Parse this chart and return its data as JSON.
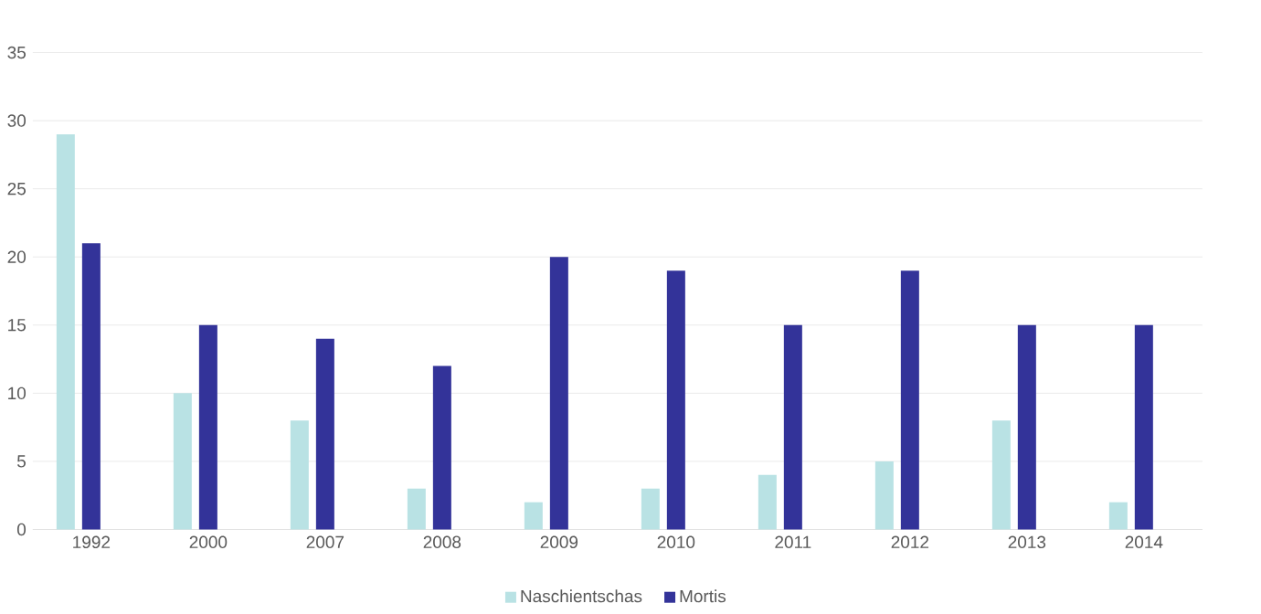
{
  "chart_data": {
    "type": "bar",
    "categories": [
      "1992",
      "2000",
      "2007",
      "2008",
      "2009",
      "2010",
      "2011",
      "2012",
      "2013",
      "2014"
    ],
    "series": [
      {
        "name": "Naschientschas",
        "color": "#b9e2e4",
        "values": [
          29,
          10,
          8,
          3,
          2,
          3,
          4,
          5,
          8,
          2
        ]
      },
      {
        "name": "Mortis",
        "color": "#333399",
        "values": [
          21,
          15,
          14,
          12,
          20,
          19,
          15,
          19,
          15,
          15
        ]
      }
    ],
    "ylim": [
      0,
      35
    ],
    "yticks": [
      0,
      5,
      10,
      15,
      20,
      25,
      30,
      35
    ],
    "grid": "y",
    "legend": "bottom"
  }
}
